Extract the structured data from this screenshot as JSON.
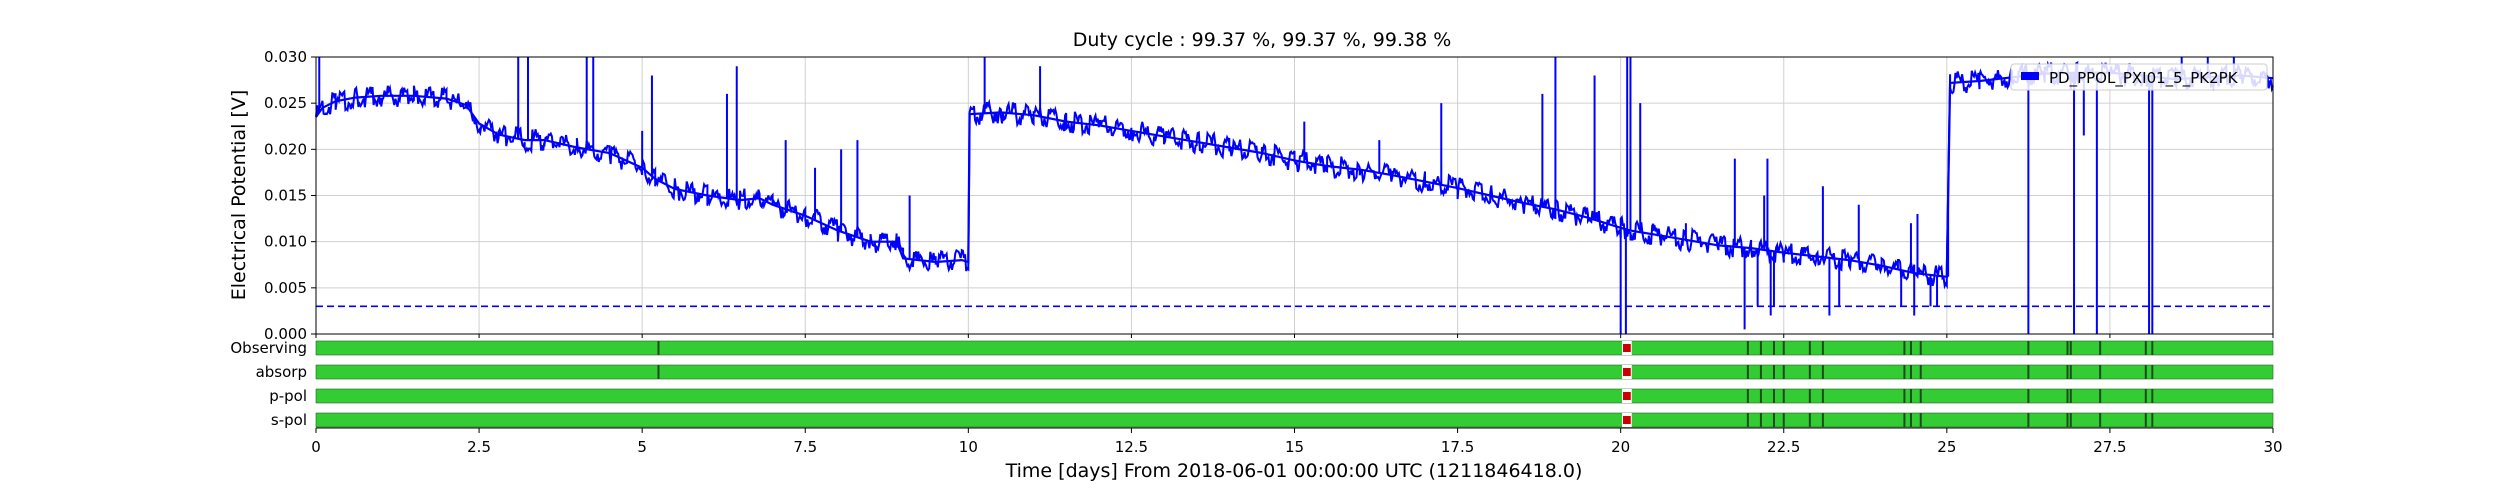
{
  "chart_data": {
    "type": "line",
    "title": "Duty cycle : 99.37 %, 99.37 %, 99.38 %",
    "ylabel": "Electrical Potential [V]",
    "xlabel": "Time [days] From 2018-06-01 00:00:00 UTC (1211846418.0)",
    "xlim": [
      0,
      30
    ],
    "ylim": [
      0,
      0.03
    ],
    "x_ticks": [
      "0",
      "2.5",
      "5",
      "7.5",
      "10",
      "12.5",
      "15",
      "17.5",
      "20",
      "22.5",
      "25",
      "27.5",
      "30"
    ],
    "y_ticks": [
      "0.000",
      "0.005",
      "0.010",
      "0.015",
      "0.020",
      "0.025",
      "0.030"
    ],
    "grid": true,
    "legend_position": "top-right",
    "series_color": "#0000ff",
    "threshold": 0.003,
    "series": [
      {
        "name": "PD_PPOL_PXI01_5_PK2PK",
        "points": [
          [
            0.0,
            0.0235
          ],
          [
            0.1,
            0.0245
          ],
          [
            0.3,
            0.0252
          ],
          [
            0.6,
            0.0256
          ],
          [
            1.0,
            0.0258
          ],
          [
            1.5,
            0.0258
          ],
          [
            2.0,
            0.0255
          ],
          [
            2.3,
            0.0248
          ],
          [
            2.5,
            0.0228
          ],
          [
            2.8,
            0.0216
          ],
          [
            3.2,
            0.021
          ],
          [
            3.5,
            0.021
          ],
          [
            4.0,
            0.0202
          ],
          [
            4.5,
            0.0196
          ],
          [
            5.0,
            0.018
          ],
          [
            5.2,
            0.0168
          ],
          [
            5.5,
            0.0157
          ],
          [
            6.0,
            0.015
          ],
          [
            6.5,
            0.0145
          ],
          [
            6.8,
            0.0147
          ],
          [
            7.0,
            0.014
          ],
          [
            7.5,
            0.0128
          ],
          [
            8.0,
            0.0112
          ],
          [
            8.5,
            0.01
          ],
          [
            8.9,
            0.01
          ],
          [
            9.0,
            0.0082
          ],
          [
            9.5,
            0.0078
          ],
          [
            9.9,
            0.008
          ],
          [
            10.0,
            0.0078
          ],
          [
            10.02,
            0.0238
          ],
          [
            10.5,
            0.024
          ],
          [
            11.0,
            0.0237
          ],
          [
            11.5,
            0.023
          ],
          [
            12.0,
            0.0226
          ],
          [
            12.5,
            0.022
          ],
          [
            13.0,
            0.0214
          ],
          [
            13.5,
            0.0208
          ],
          [
            14.0,
            0.0202
          ],
          [
            14.5,
            0.0196
          ],
          [
            15.0,
            0.0188
          ],
          [
            15.5,
            0.0182
          ],
          [
            16.0,
            0.0178
          ],
          [
            16.5,
            0.0172
          ],
          [
            17.0,
            0.0165
          ],
          [
            17.5,
            0.0158
          ],
          [
            18.0,
            0.015
          ],
          [
            18.5,
            0.0142
          ],
          [
            19.0,
            0.0135
          ],
          [
            19.5,
            0.0126
          ],
          [
            20.0,
            0.0115
          ],
          [
            20.15,
            0.0112
          ],
          [
            20.5,
            0.0108
          ],
          [
            21.0,
            0.0102
          ],
          [
            21.5,
            0.0096
          ],
          [
            22.0,
            0.0093
          ],
          [
            22.5,
            0.0088
          ],
          [
            23.0,
            0.0084
          ],
          [
            23.5,
            0.008
          ],
          [
            24.0,
            0.0074
          ],
          [
            24.5,
            0.0066
          ],
          [
            25.0,
            0.0062
          ],
          [
            25.05,
            0.0272
          ],
          [
            25.5,
            0.0274
          ],
          [
            26.0,
            0.0278
          ],
          [
            26.5,
            0.0282
          ],
          [
            27.0,
            0.0283
          ],
          [
            27.5,
            0.0283
          ],
          [
            28.0,
            0.028
          ],
          [
            28.5,
            0.0276
          ],
          [
            29.0,
            0.0278
          ],
          [
            29.5,
            0.028
          ],
          [
            30.0,
            0.0277
          ]
        ],
        "spikes": [
          [
            0.05,
            0.03
          ],
          [
            3.1,
            0.03
          ],
          [
            3.25,
            0.03
          ],
          [
            4.15,
            0.03
          ],
          [
            4.25,
            0.03
          ],
          [
            5.0,
            0.022
          ],
          [
            5.15,
            0.028
          ],
          [
            6.3,
            0.026
          ],
          [
            6.45,
            0.029
          ],
          [
            7.2,
            0.021
          ],
          [
            7.65,
            0.018
          ],
          [
            8.05,
            0.02
          ],
          [
            8.3,
            0.021
          ],
          [
            9.1,
            0.015
          ],
          [
            10.25,
            0.03
          ],
          [
            11.1,
            0.029
          ],
          [
            19.0,
            0.03
          ],
          [
            18.8,
            0.026
          ],
          [
            17.25,
            0.025
          ],
          [
            15.15,
            0.023
          ],
          [
            16.3,
            0.021
          ],
          [
            19.6,
            0.028
          ],
          [
            20.15,
            0.03
          ],
          [
            20.3,
            0.025
          ],
          [
            21.0,
            0.012
          ],
          [
            21.75,
            0.019
          ],
          [
            22.2,
            0.015
          ],
          [
            22.25,
            0.019
          ],
          [
            22.1,
            0.003
          ],
          [
            22.3,
            0.002
          ],
          [
            22.35,
            0.003
          ],
          [
            21.9,
            0.0005
          ],
          [
            23.2,
            0.002
          ],
          [
            23.35,
            0.003
          ],
          [
            23.1,
            0.016
          ],
          [
            23.65,
            0.014
          ],
          [
            24.45,
            0.012
          ],
          [
            24.55,
            0.013
          ],
          [
            24.25,
            0.008
          ],
          [
            24.3,
            0.003
          ],
          [
            24.5,
            0.002
          ],
          [
            24.75,
            0.003
          ],
          [
            24.85,
            0.003
          ],
          [
            26.25,
            0.0
          ],
          [
            26.95,
            0.0
          ],
          [
            27.3,
            0.0
          ],
          [
            28.1,
            0.0
          ],
          [
            28.15,
            0.0
          ],
          [
            26.7,
            0.027
          ],
          [
            27.1,
            0.0215
          ],
          [
            26.9,
            0.0265
          ],
          [
            29.0,
            0.03
          ],
          [
            29.4,
            0.03
          ],
          [
            28.6,
            0.03
          ]
        ],
        "drops": [
          [
            20.0,
            0.0
          ],
          [
            20.08,
            0.0
          ],
          [
            20.1,
            0.03
          ],
          [
            25.02,
            0.0062
          ]
        ]
      }
    ],
    "state_panel": {
      "rows": [
        "Observing",
        "absorp",
        "p-pol",
        "s-pol"
      ],
      "active_color": "#33cc33",
      "fail_color": "#cc0000",
      "fail_interval": [
        20.02,
        20.17
      ],
      "flag_marks": {
        "Observing": [
          5.25,
          21.95,
          22.15,
          22.35,
          22.5,
          22.9,
          23.1,
          24.35,
          24.45,
          24.6,
          26.25,
          26.85,
          26.9,
          27.35,
          28.05,
          28.15
        ],
        "absorp": [
          5.25,
          21.95,
          22.15,
          22.35,
          22.5,
          22.9,
          23.1,
          24.35,
          24.45,
          24.6,
          26.25,
          26.85,
          26.9,
          27.35,
          28.05,
          28.15
        ],
        "p-pol": [
          21.95,
          22.15,
          22.35,
          22.5,
          22.9,
          23.1,
          24.35,
          24.45,
          24.6,
          26.25,
          26.85,
          26.9,
          27.35,
          28.05,
          28.15
        ],
        "s-pol": [
          21.95,
          22.15,
          22.35,
          22.5,
          22.9,
          23.1,
          24.35,
          24.45,
          24.6,
          26.25,
          26.85,
          26.9,
          27.35,
          28.05,
          28.15
        ]
      }
    }
  }
}
